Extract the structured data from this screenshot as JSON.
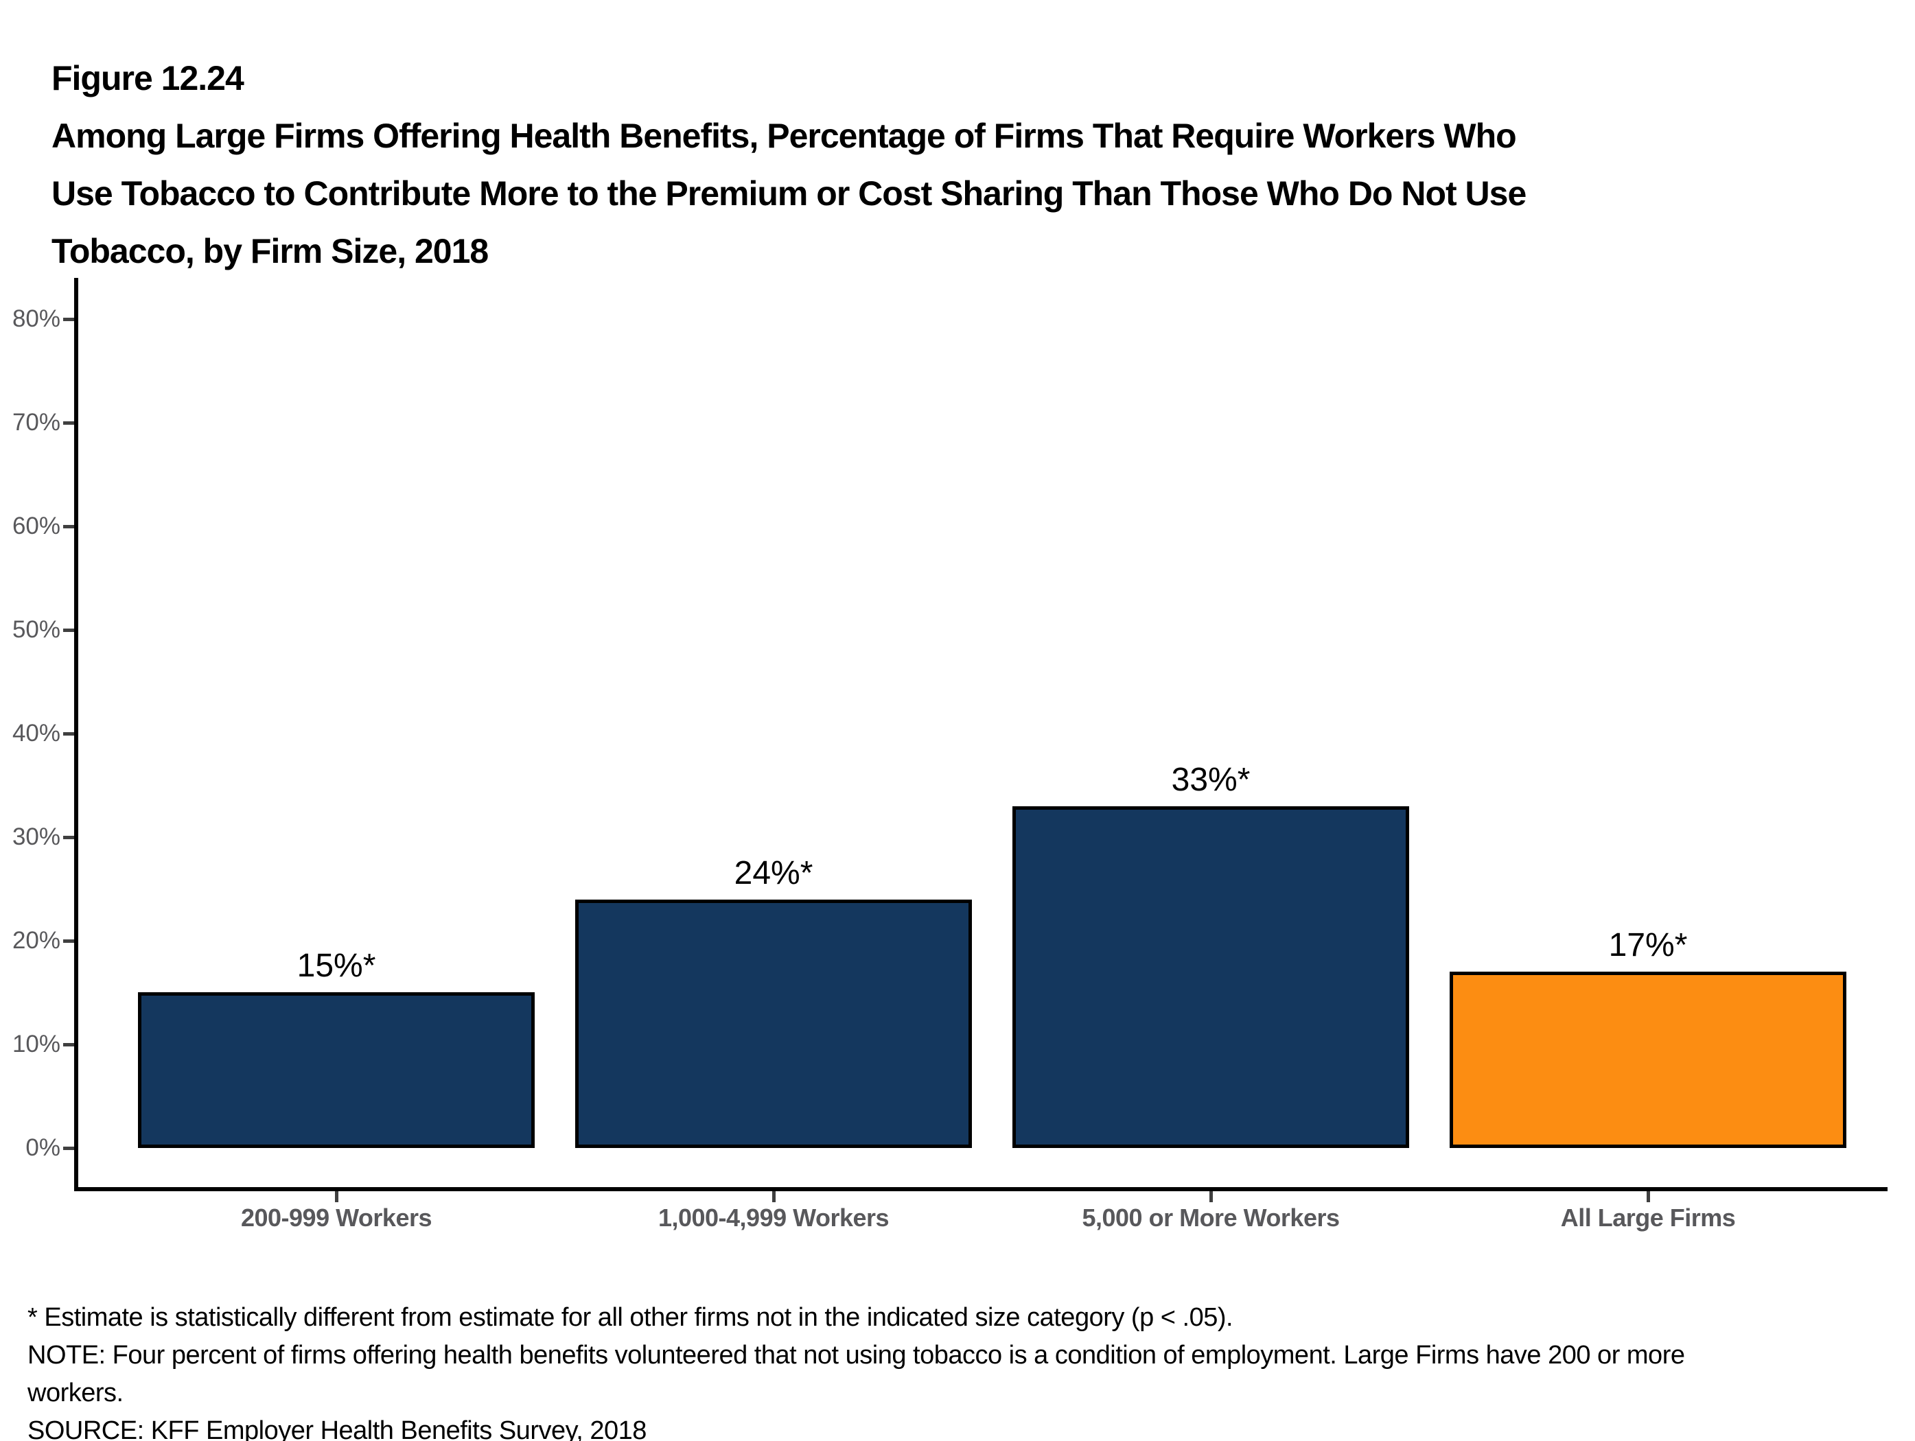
{
  "figure": {
    "label": "Figure 12.24",
    "title_lines": [
      "Among Large Firms Offering Health Benefits, Percentage of Firms That Require Workers Who",
      "Use Tobacco to Contribute More to the Premium or Cost Sharing Than Those Who Do Not Use",
      "Tobacco, by Firm Size, 2018"
    ]
  },
  "chart_data": {
    "type": "bar",
    "title": "Among Large Firms Offering Health Benefits, Percentage of Firms That Require Workers Who Use Tobacco to Contribute More to the Premium or Cost Sharing Than Those Who Do Not Use Tobacco, by Firm Size, 2018",
    "categories": [
      "200-999 Workers",
      "1,000-4,999 Workers",
      "5,000 or More Workers",
      "All Large Firms"
    ],
    "values": [
      15,
      24,
      33,
      17
    ],
    "data_labels": [
      "15%*",
      "24%*",
      "33%*",
      "17%*"
    ],
    "bar_colors": [
      "#14375E",
      "#14375E",
      "#14375E",
      "#FC8D12"
    ],
    "xlabel": "",
    "ylabel": "",
    "ylim": [
      0,
      80
    ],
    "ytick_interval": 10,
    "ytick_labels": [
      "0%",
      "10%",
      "20%",
      "30%",
      "40%",
      "50%",
      "60%",
      "70%",
      "80%"
    ],
    "grid": false,
    "legend": "none"
  },
  "footnotes": {
    "asterisk": "* Estimate is statistically different from estimate for all other firms not in the indicated size category (p < .05).",
    "note_lines": [
      "NOTE: Four percent of firms offering health benefits volunteered that not using tobacco is a condition of employment. Large Firms have 200 or more",
      "workers."
    ],
    "source": "SOURCE: KFF Employer Health Benefits Survey, 2018"
  },
  "colors": {
    "navy": "#14375E",
    "orange": "#FC8D12",
    "axis_line": "#000000",
    "tick": "#404040",
    "axis_label_gray": "#58585B",
    "bar_border": "#000000",
    "background": "#FFFFFF"
  }
}
